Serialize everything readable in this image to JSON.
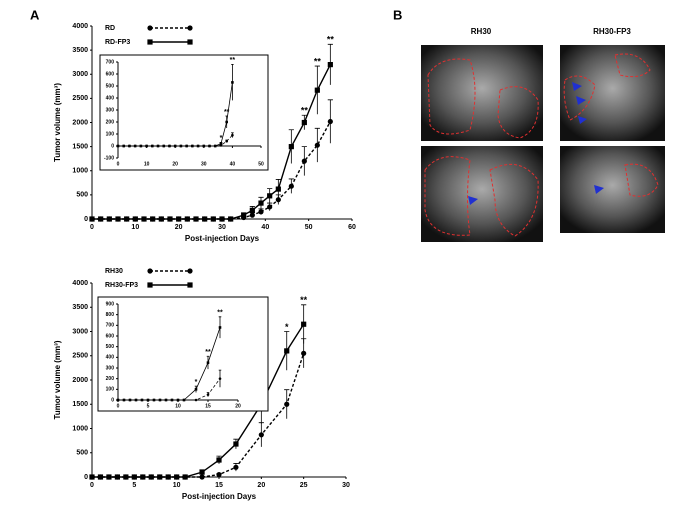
{
  "panels": {
    "a": "A",
    "b": "B",
    "b_columns": [
      "RH30",
      "RH30-FP3"
    ]
  },
  "chart_data": [
    {
      "type": "line",
      "x_label": "Post-injection Days",
      "y_label": "Tumor volume (mm³)",
      "x": [
        0,
        2,
        4,
        6,
        8,
        10,
        12,
        14,
        16,
        18,
        20,
        22,
        24,
        26,
        28,
        30,
        32,
        35,
        37,
        39,
        41,
        43,
        46,
        49,
        52,
        55
      ],
      "series": [
        {
          "name": "RD",
          "color": "#000000",
          "dash": true,
          "marker": "circle",
          "values": [
            0,
            0,
            0,
            0,
            0,
            0,
            0,
            0,
            0,
            0,
            0,
            0,
            0,
            0,
            0,
            0,
            0,
            30,
            80,
            150,
            250,
            400,
            680,
            1200,
            1530,
            2020
          ],
          "errors": [
            0,
            0,
            0,
            0,
            0,
            0,
            0,
            0,
            0,
            0,
            0,
            0,
            0,
            0,
            0,
            0,
            0,
            30,
            50,
            60,
            80,
            100,
            150,
            300,
            350,
            450
          ]
        },
        {
          "name": "RD-FP3",
          "color": "#000000",
          "dash": false,
          "marker": "square",
          "values": [
            0,
            0,
            0,
            0,
            0,
            0,
            0,
            0,
            0,
            0,
            0,
            0,
            0,
            0,
            0,
            0,
            0,
            80,
            180,
            330,
            480,
            620,
            1500,
            2000,
            2670,
            3200
          ],
          "errors": [
            0,
            0,
            0,
            0,
            0,
            0,
            0,
            0,
            0,
            0,
            0,
            0,
            0,
            0,
            0,
            0,
            0,
            50,
            80,
            120,
            150,
            200,
            350,
            150,
            500,
            420
          ]
        }
      ],
      "annotations": [
        {
          "x": 49,
          "text": "**"
        },
        {
          "x": 52,
          "text": "**"
        },
        {
          "x": 55,
          "text": "**"
        }
      ],
      "xlim": [
        0,
        60
      ],
      "xticks": [
        0,
        10,
        20,
        30,
        40,
        50,
        60
      ],
      "ylim": [
        0,
        4000
      ],
      "yticks": [
        0,
        500,
        1000,
        1500,
        2000,
        2500,
        3000,
        3500,
        4000
      ]
    },
    {
      "type": "line",
      "x": [
        0,
        2,
        4,
        6,
        8,
        10,
        12,
        14,
        16,
        18,
        20,
        22,
        24,
        26,
        28,
        30,
        32,
        34,
        36,
        38,
        40
      ],
      "series": [
        {
          "color": "#000000",
          "dash": true,
          "marker": "circle",
          "values": [
            0,
            0,
            0,
            0,
            0,
            0,
            0,
            0,
            0,
            0,
            0,
            0,
            0,
            0,
            0,
            0,
            0,
            0,
            5,
            40,
            90
          ],
          "errors": [
            0,
            0,
            0,
            0,
            0,
            0,
            0,
            0,
            0,
            0,
            0,
            0,
            0,
            0,
            0,
            0,
            0,
            0,
            5,
            10,
            20
          ]
        },
        {
          "color": "#000000",
          "dash": false,
          "marker": "square",
          "values": [
            0,
            0,
            0,
            0,
            0,
            0,
            0,
            0,
            0,
            0,
            0,
            0,
            0,
            0,
            0,
            0,
            0,
            0,
            20,
            200,
            530
          ],
          "errors": [
            0,
            0,
            0,
            0,
            0,
            0,
            0,
            0,
            0,
            0,
            0,
            0,
            0,
            0,
            0,
            0,
            0,
            0,
            10,
            50,
            150
          ]
        }
      ],
      "annotations": [
        {
          "x": 36,
          "text": "*"
        },
        {
          "x": 38,
          "text": "**"
        },
        {
          "x": 40,
          "text": "**"
        }
      ],
      "xlim": [
        0,
        50
      ],
      "xticks": [
        0,
        10,
        20,
        30,
        40,
        50
      ],
      "ylim": [
        -100,
        700
      ],
      "yticks": [
        -100,
        0,
        100,
        200,
        300,
        400,
        500,
        600,
        700
      ]
    },
    {
      "type": "line",
      "x_label": "Post-injection Days",
      "y_label": "Tumor volume (mm³)",
      "x": [
        0,
        1,
        2,
        3,
        4,
        5,
        6,
        7,
        8,
        9,
        10,
        11,
        13,
        15,
        17,
        20,
        23,
        25
      ],
      "series": [
        {
          "name": "RH30",
          "color": "#000000",
          "dash": true,
          "marker": "circle",
          "values": [
            0,
            0,
            0,
            0,
            0,
            0,
            0,
            0,
            0,
            0,
            0,
            0,
            0,
            50,
            200,
            870,
            1500,
            2550
          ],
          "errors": [
            0,
            0,
            0,
            0,
            0,
            0,
            0,
            0,
            0,
            0,
            0,
            0,
            0,
            20,
            80,
            250,
            300,
            300
          ]
        },
        {
          "name": "RH30-FP3",
          "color": "#000000",
          "dash": false,
          "marker": "square",
          "values": [
            0,
            0,
            0,
            0,
            0,
            0,
            0,
            0,
            0,
            0,
            0,
            0,
            100,
            350,
            680,
            1500,
            2600,
            3150
          ],
          "errors": [
            0,
            0,
            0,
            0,
            0,
            0,
            0,
            0,
            0,
            0,
            0,
            0,
            50,
            80,
            100,
            400,
            400,
            400
          ]
        }
      ],
      "annotations": [
        {
          "x": 23,
          "text": "*"
        },
        {
          "x": 25,
          "text": "**"
        }
      ],
      "xlim": [
        0,
        30
      ],
      "xticks": [
        0,
        5,
        10,
        15,
        20,
        25,
        30
      ],
      "ylim": [
        0,
        4000
      ],
      "yticks": [
        0,
        500,
        1000,
        1500,
        2000,
        2500,
        3000,
        3500,
        4000
      ]
    },
    {
      "type": "line",
      "x": [
        0,
        1,
        2,
        3,
        4,
        5,
        6,
        7,
        8,
        9,
        10,
        11,
        13,
        15,
        17
      ],
      "series": [
        {
          "color": "#000000",
          "dash": true,
          "marker": "circle",
          "values": [
            0,
            0,
            0,
            0,
            0,
            0,
            0,
            0,
            0,
            0,
            0,
            0,
            0,
            50,
            200
          ],
          "errors": [
            0,
            0,
            0,
            0,
            0,
            0,
            0,
            0,
            0,
            0,
            0,
            0,
            0,
            20,
            80
          ]
        },
        {
          "color": "#000000",
          "dash": false,
          "marker": "square",
          "values": [
            0,
            0,
            0,
            0,
            0,
            0,
            0,
            0,
            0,
            0,
            0,
            0,
            100,
            350,
            680
          ],
          "errors": [
            0,
            0,
            0,
            0,
            0,
            0,
            0,
            0,
            0,
            0,
            0,
            0,
            30,
            60,
            100
          ]
        }
      ],
      "annotations": [
        {
          "x": 13,
          "text": "*"
        },
        {
          "x": 15,
          "text": "**"
        },
        {
          "x": 17,
          "text": "**"
        }
      ],
      "xlim": [
        0,
        20
      ],
      "xticks": [
        0,
        5,
        10,
        15,
        20
      ],
      "ylim": [
        0,
        900
      ],
      "yticks": [
        0,
        100,
        200,
        300,
        400,
        500,
        600,
        700,
        800,
        900
      ]
    }
  ]
}
